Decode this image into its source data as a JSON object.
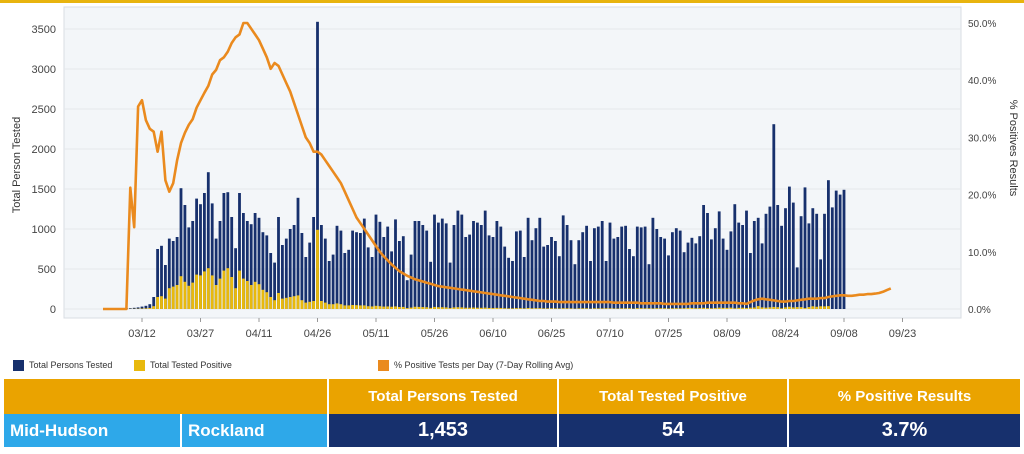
{
  "chart_data": {
    "type": "bar+line",
    "title": "",
    "ylabel_left": "Total Person Tested",
    "ylabel_right": "% Positives Results",
    "ylim_left": [
      0,
      3600
    ],
    "ylim_right": [
      0,
      0.52
    ],
    "yticks_left": [
      "0",
      "500",
      "1000",
      "1500",
      "2000",
      "2500",
      "3000",
      "3500"
    ],
    "yticks_right": [
      "0.0%",
      "10.0%",
      "20.0%",
      "30.0%",
      "40.0%",
      "50.0%"
    ],
    "x_start_date": "03/02",
    "xticks": [
      {
        "label": "03/12",
        "day": 10
      },
      {
        "label": "03/27",
        "day": 25
      },
      {
        "label": "04/11",
        "day": 40
      },
      {
        "label": "04/26",
        "day": 55
      },
      {
        "label": "05/11",
        "day": 70
      },
      {
        "label": "05/26",
        "day": 85
      },
      {
        "label": "06/10",
        "day": 100
      },
      {
        "label": "06/25",
        "day": 115
      },
      {
        "label": "07/10",
        "day": 130
      },
      {
        "label": "07/25",
        "day": 145
      },
      {
        "label": "08/09",
        "day": 160
      },
      {
        "label": "08/24",
        "day": 175
      },
      {
        "label": "09/08",
        "day": 190
      },
      {
        "label": "09/23",
        "day": 205
      }
    ],
    "series": [
      {
        "name": "Total Persons Tested",
        "type": "bar",
        "color": "#17306d",
        "values": [
          0,
          0,
          0,
          0,
          0,
          0,
          10,
          10,
          15,
          20,
          30,
          40,
          60,
          150,
          750,
          790,
          550,
          880,
          850,
          900,
          1510,
          1300,
          1020,
          1100,
          1380,
          1310,
          1450,
          1710,
          1320,
          880,
          1100,
          1450,
          1460,
          1150,
          760,
          1450,
          1200,
          1100,
          1060,
          1200,
          1140,
          960,
          920,
          700,
          580,
          1150,
          800,
          880,
          1000,
          1050,
          1390,
          950,
          650,
          830,
          1150,
          3590,
          1050,
          880,
          600,
          680,
          1040,
          980,
          700,
          740,
          980,
          960,
          950,
          1130,
          770,
          650,
          1180,
          1090,
          900,
          1030,
          720,
          1120,
          850,
          910,
          360,
          680,
          1100,
          1100,
          1050,
          980,
          590,
          1180,
          1080,
          1130,
          1070,
          580,
          1050,
          1230,
          1180,
          900,
          930,
          1100,
          1080,
          1050,
          1230,
          920,
          900,
          1100,
          1030,
          780,
          640,
          600,
          970,
          980,
          650,
          1140,
          860,
          1010,
          1140,
          780,
          800,
          900,
          850,
          660,
          1170,
          1050,
          860,
          560,
          860,
          960,
          1040,
          600,
          1010,
          1030,
          1100,
          600,
          1080,
          880,
          900,
          1030,
          1040,
          750,
          660,
          1030,
          1020,
          1030,
          560,
          1140,
          1000,
          900,
          880,
          670,
          960,
          1010,
          980,
          710,
          830,
          890,
          820,
          910,
          1300,
          1200,
          870,
          1010,
          1220,
          880,
          740,
          970,
          1310,
          1080,
          1050,
          1230,
          700,
          1100,
          1140,
          820,
          1190,
          1280,
          2310,
          1300,
          1040,
          1260,
          1530,
          1330,
          520,
          1160,
          1520,
          1070,
          1260,
          1190,
          620,
          1190,
          1610,
          1270,
          1480,
          1430,
          1490
        ]
      },
      {
        "name": "Total Tested Positive",
        "type": "bar",
        "color": "#e8b90d",
        "values": [
          0,
          0,
          0,
          0,
          0,
          0,
          1,
          2,
          3,
          4,
          6,
          8,
          12,
          35,
          150,
          160,
          130,
          260,
          280,
          300,
          410,
          340,
          290,
          330,
          430,
          420,
          470,
          510,
          420,
          300,
          380,
          480,
          510,
          400,
          260,
          480,
          380,
          350,
          300,
          340,
          310,
          240,
          210,
          150,
          110,
          200,
          130,
          140,
          150,
          160,
          170,
          110,
          80,
          90,
          100,
          990,
          100,
          80,
          60,
          60,
          70,
          60,
          45,
          45,
          50,
          48,
          45,
          45,
          35,
          32,
          40,
          35,
          30,
          32,
          28,
          32,
          25,
          26,
          12,
          18,
          28,
          26,
          24,
          22,
          14,
          26,
          22,
          22,
          20,
          12,
          20,
          22,
          20,
          16,
          16,
          18,
          16,
          15,
          17,
          13,
          12,
          14,
          13,
          10,
          8,
          8,
          11,
          11,
          8,
          12,
          9,
          10,
          11,
          8,
          8,
          9,
          8,
          7,
          10,
          9,
          8,
          5,
          8,
          9,
          9,
          5,
          9,
          8,
          8,
          9,
          9,
          7,
          6,
          9,
          9,
          10,
          5,
          11,
          10,
          9,
          9,
          7,
          10,
          10,
          10,
          7,
          9,
          10,
          9,
          10,
          14,
          13,
          10,
          12,
          15,
          11,
          9,
          12,
          17,
          14,
          14,
          17,
          9,
          15,
          16,
          12,
          17,
          19,
          36,
          20,
          17,
          21,
          26,
          23,
          9,
          21,
          28,
          20,
          24,
          23,
          12,
          24,
          34,
          28,
          34,
          33,
          36
        ]
      },
      {
        "name": "% Positive Tests per Day (7-Day Rolling Avg)",
        "type": "line",
        "color": "#ea8a1e",
        "values": [
          0,
          0,
          0,
          0,
          0,
          0,
          0,
          0.212,
          0.143,
          0.354,
          0.365,
          0.33,
          0.315,
          0.31,
          0.275,
          0.31,
          0.225,
          0.205,
          0.22,
          0.26,
          0.29,
          0.308,
          0.322,
          0.332,
          0.352,
          0.365,
          0.378,
          0.39,
          0.41,
          0.418,
          0.435,
          0.44,
          0.45,
          0.465,
          0.475,
          0.48,
          0.5,
          0.5,
          0.49,
          0.48,
          0.47,
          0.455,
          0.44,
          0.42,
          0.43,
          0.425,
          0.41,
          0.395,
          0.38,
          0.36,
          0.34,
          0.32,
          0.3,
          0.29,
          0.275,
          0.275,
          0.27,
          0.26,
          0.25,
          0.24,
          0.23,
          0.22,
          0.205,
          0.19,
          0.175,
          0.16,
          0.15,
          0.14,
          0.13,
          0.12,
          0.11,
          0.1,
          0.092,
          0.085,
          0.078,
          0.072,
          0.066,
          0.062,
          0.058,
          0.055,
          0.052,
          0.05,
          0.048,
          0.046,
          0.044,
          0.042,
          0.04,
          0.039,
          0.038,
          0.037,
          0.036,
          0.035,
          0.034,
          0.033,
          0.032,
          0.031,
          0.03,
          0.029,
          0.028,
          0.027,
          0.026,
          0.025,
          0.024,
          0.023,
          0.022,
          0.021,
          0.02,
          0.019,
          0.018,
          0.017,
          0.016,
          0.015,
          0.014,
          0.014,
          0.013,
          0.013,
          0.013,
          0.012,
          0.012,
          0.012,
          0.012,
          0.012,
          0.012,
          0.012,
          0.012,
          0.012,
          0.012,
          0.012,
          0.012,
          0.012,
          0.012,
          0.011,
          0.011,
          0.011,
          0.011,
          0.011,
          0.011,
          0.011,
          0.01,
          0.01,
          0.01,
          0.01,
          0.01,
          0.01,
          0.009,
          0.009,
          0.009,
          0.009,
          0.009,
          0.009,
          0.009,
          0.01,
          0.01,
          0.01,
          0.01,
          0.011,
          0.011,
          0.011,
          0.011,
          0.011,
          0.011,
          0.011,
          0.011,
          0.01,
          0.01,
          0.009,
          0.012,
          0.015,
          0.017,
          0.018,
          0.017,
          0.016,
          0.015,
          0.014,
          0.013,
          0.013,
          0.014,
          0.014,
          0.015,
          0.016,
          0.017,
          0.018,
          0.018,
          0.018,
          0.019,
          0.019,
          0.021,
          0.022,
          0.023,
          0.024,
          0.024,
          0.023,
          0.023,
          0.024,
          0.025,
          0.025,
          0.026,
          0.026,
          0.027,
          0.028,
          0.03,
          0.033,
          0.036
        ]
      }
    ]
  },
  "legend": {
    "tested": "Total Persons Tested",
    "positive": "Total Tested Positive",
    "pct": "% Positive Tests per Day (7-Day Rolling Avg)"
  },
  "summary": {
    "headers": [
      "Total Persons Tested",
      "Total Tested Positive",
      "% Positive Results"
    ],
    "region": "Mid-Hudson",
    "county": "Rockland",
    "total_tested": "1,453",
    "total_positive": "54",
    "pct_positive": "3.7%"
  },
  "colors": {
    "accent": "#eaa300",
    "navy": "#17306d",
    "blue": "#2ea8e9",
    "gold": "#e8b90d",
    "orange": "#ea8a1e"
  }
}
